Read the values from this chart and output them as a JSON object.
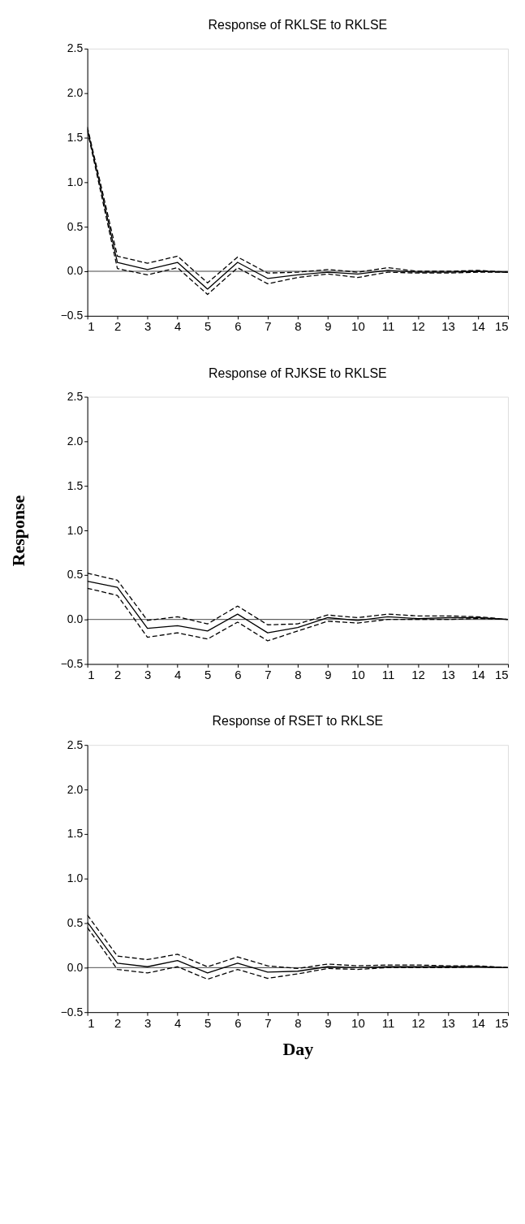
{
  "chart_data": [
    {
      "type": "line",
      "title": "Response of RKLSE to RKLSE",
      "x": [
        1,
        2,
        3,
        4,
        5,
        6,
        7,
        8,
        9,
        10,
        11,
        12,
        13,
        14,
        15
      ],
      "xlim": [
        1,
        15
      ],
      "xticks": [
        1,
        2,
        3,
        4,
        5,
        6,
        7,
        8,
        9,
        10,
        11,
        12,
        13,
        14,
        15
      ],
      "ylim": [
        -0.5,
        2.5
      ],
      "yticks": [
        -0.5,
        {
          "value": 0,
          "label": "0.0"
        },
        0.5,
        {
          "value": 1,
          "label": "1.0"
        },
        1.5,
        {
          "value": 2,
          "label": "2.0"
        },
        2.5
      ],
      "grid": false,
      "ref_lines": [
        {
          "axis": "y",
          "value": 0,
          "color": "#000000"
        }
      ],
      "series": [
        {
          "color": "#000000",
          "line_style": "solid",
          "values": [
            1.6,
            0.1,
            0.02,
            0.1,
            -0.2,
            0.1,
            -0.08,
            -0.04,
            -0.01,
            -0.03,
            0.01,
            -0.01,
            -0.01,
            0.0,
            -0.01
          ]
        },
        {
          "color": "#000000",
          "line_style": "dashed",
          "values": [
            1.62,
            0.17,
            0.09,
            0.17,
            -0.13,
            0.16,
            -0.02,
            -0.01,
            0.02,
            -0.01,
            0.04,
            0.0,
            0.0,
            0.01,
            -0.01
          ]
        },
        {
          "color": "#000000",
          "line_style": "dashed",
          "values": [
            1.58,
            0.03,
            -0.04,
            0.04,
            -0.26,
            0.04,
            -0.14,
            -0.07,
            -0.03,
            -0.07,
            -0.01,
            -0.02,
            -0.02,
            -0.01,
            -0.01
          ]
        }
      ]
    },
    {
      "type": "line",
      "title": "Response of RJKSE to RKLSE",
      "ylabel": "Response",
      "x": [
        1,
        2,
        3,
        4,
        5,
        6,
        7,
        8,
        9,
        10,
        11,
        12,
        13,
        14,
        15
      ],
      "xlim": [
        1,
        15
      ],
      "xticks": [
        1,
        2,
        3,
        4,
        5,
        6,
        7,
        8,
        9,
        10,
        11,
        12,
        13,
        14,
        15
      ],
      "ylim": [
        -0.5,
        2.5
      ],
      "yticks": [
        -0.5,
        {
          "value": 0,
          "label": "0.0"
        },
        0.5,
        {
          "value": 1,
          "label": "1.0"
        },
        1.5,
        {
          "value": 2,
          "label": "2.0"
        },
        2.5
      ],
      "grid": false,
      "ref_lines": [
        {
          "axis": "y",
          "value": 0,
          "color": "#000000"
        }
      ],
      "series": [
        {
          "color": "#000000",
          "line_style": "solid",
          "values": [
            0.43,
            0.36,
            -0.1,
            -0.07,
            -0.13,
            0.06,
            -0.15,
            -0.09,
            0.02,
            -0.01,
            0.03,
            0.01,
            0.02,
            0.02,
            0.0
          ]
        },
        {
          "color": "#000000",
          "line_style": "dashed",
          "values": [
            0.52,
            0.44,
            -0.01,
            0.03,
            -0.05,
            0.15,
            -0.06,
            -0.05,
            0.05,
            0.02,
            0.06,
            0.04,
            0.04,
            0.03,
            0.0
          ]
        },
        {
          "color": "#000000",
          "line_style": "dashed",
          "values": [
            0.35,
            0.27,
            -0.2,
            -0.15,
            -0.22,
            -0.03,
            -0.24,
            -0.13,
            -0.02,
            -0.04,
            0.0,
            0.0,
            0.0,
            0.01,
            0.0
          ]
        }
      ]
    },
    {
      "type": "line",
      "title": "Response of RSET to RKLSE",
      "xlabel": "Day",
      "x": [
        1,
        2,
        3,
        4,
        5,
        6,
        7,
        8,
        9,
        10,
        11,
        12,
        13,
        14,
        15
      ],
      "xlim": [
        1,
        15
      ],
      "xticks": [
        1,
        2,
        3,
        4,
        5,
        6,
        7,
        8,
        9,
        10,
        11,
        12,
        13,
        14,
        15
      ],
      "ylim": [
        -0.5,
        2.5
      ],
      "yticks": [
        -0.5,
        {
          "value": 0,
          "label": "0.0"
        },
        0.5,
        {
          "value": 1,
          "label": "1.0"
        },
        1.5,
        {
          "value": 2,
          "label": "2.0"
        },
        2.5
      ],
      "grid": false,
      "ref_lines": [
        {
          "axis": "y",
          "value": 0,
          "color": "#000000"
        }
      ],
      "series": [
        {
          "color": "#000000",
          "line_style": "solid",
          "values": [
            0.51,
            0.05,
            0.01,
            0.08,
            -0.06,
            0.05,
            -0.05,
            -0.04,
            0.01,
            0.0,
            0.01,
            0.01,
            0.01,
            0.01,
            0.0
          ]
        },
        {
          "color": "#000000",
          "line_style": "dashed",
          "values": [
            0.59,
            0.13,
            0.09,
            0.15,
            0.01,
            0.12,
            0.02,
            -0.01,
            0.04,
            0.02,
            0.03,
            0.03,
            0.02,
            0.02,
            0.0
          ]
        },
        {
          "color": "#000000",
          "line_style": "dashed",
          "values": [
            0.45,
            -0.02,
            -0.06,
            0.01,
            -0.13,
            -0.02,
            -0.12,
            -0.07,
            -0.01,
            -0.02,
            0.0,
            0.0,
            0.0,
            0.01,
            0.0
          ]
        }
      ]
    }
  ]
}
